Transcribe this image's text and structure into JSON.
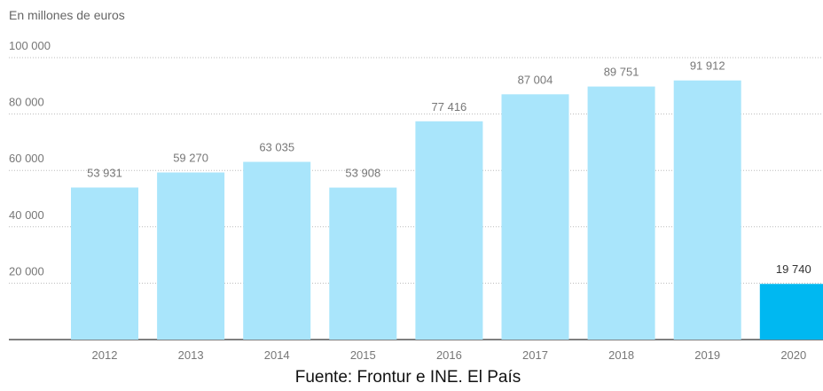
{
  "chart_data": {
    "type": "bar",
    "subtitle": "En millones de euros",
    "categories": [
      "2012",
      "2013",
      "2014",
      "2015",
      "2016",
      "2017",
      "2018",
      "2019",
      "2020"
    ],
    "values": [
      53931,
      59270,
      63035,
      53908,
      77416,
      87004,
      89751,
      91912,
      19740
    ],
    "value_labels": [
      "53 931",
      "59 270",
      "63 035",
      "53 908",
      "77 416",
      "87 004",
      "89 751",
      "91 912",
      "19 740"
    ],
    "colors": [
      "#a9e5fb",
      "#a9e5fb",
      "#a9e5fb",
      "#a9e5fb",
      "#a9e5fb",
      "#a9e5fb",
      "#a9e5fb",
      "#a9e5fb",
      "#00b8f1"
    ],
    "ylim": [
      0,
      100000
    ],
    "yticks": [
      {
        "value": 20000,
        "label": "20 000"
      },
      {
        "value": 40000,
        "label": "40 000"
      },
      {
        "value": 60000,
        "label": "60 000"
      },
      {
        "value": 80000,
        "label": "80 000"
      },
      {
        "value": 100000,
        "label": "100 000"
      }
    ],
    "grid": true,
    "source": "Fuente: Frontur e INE. El País"
  }
}
